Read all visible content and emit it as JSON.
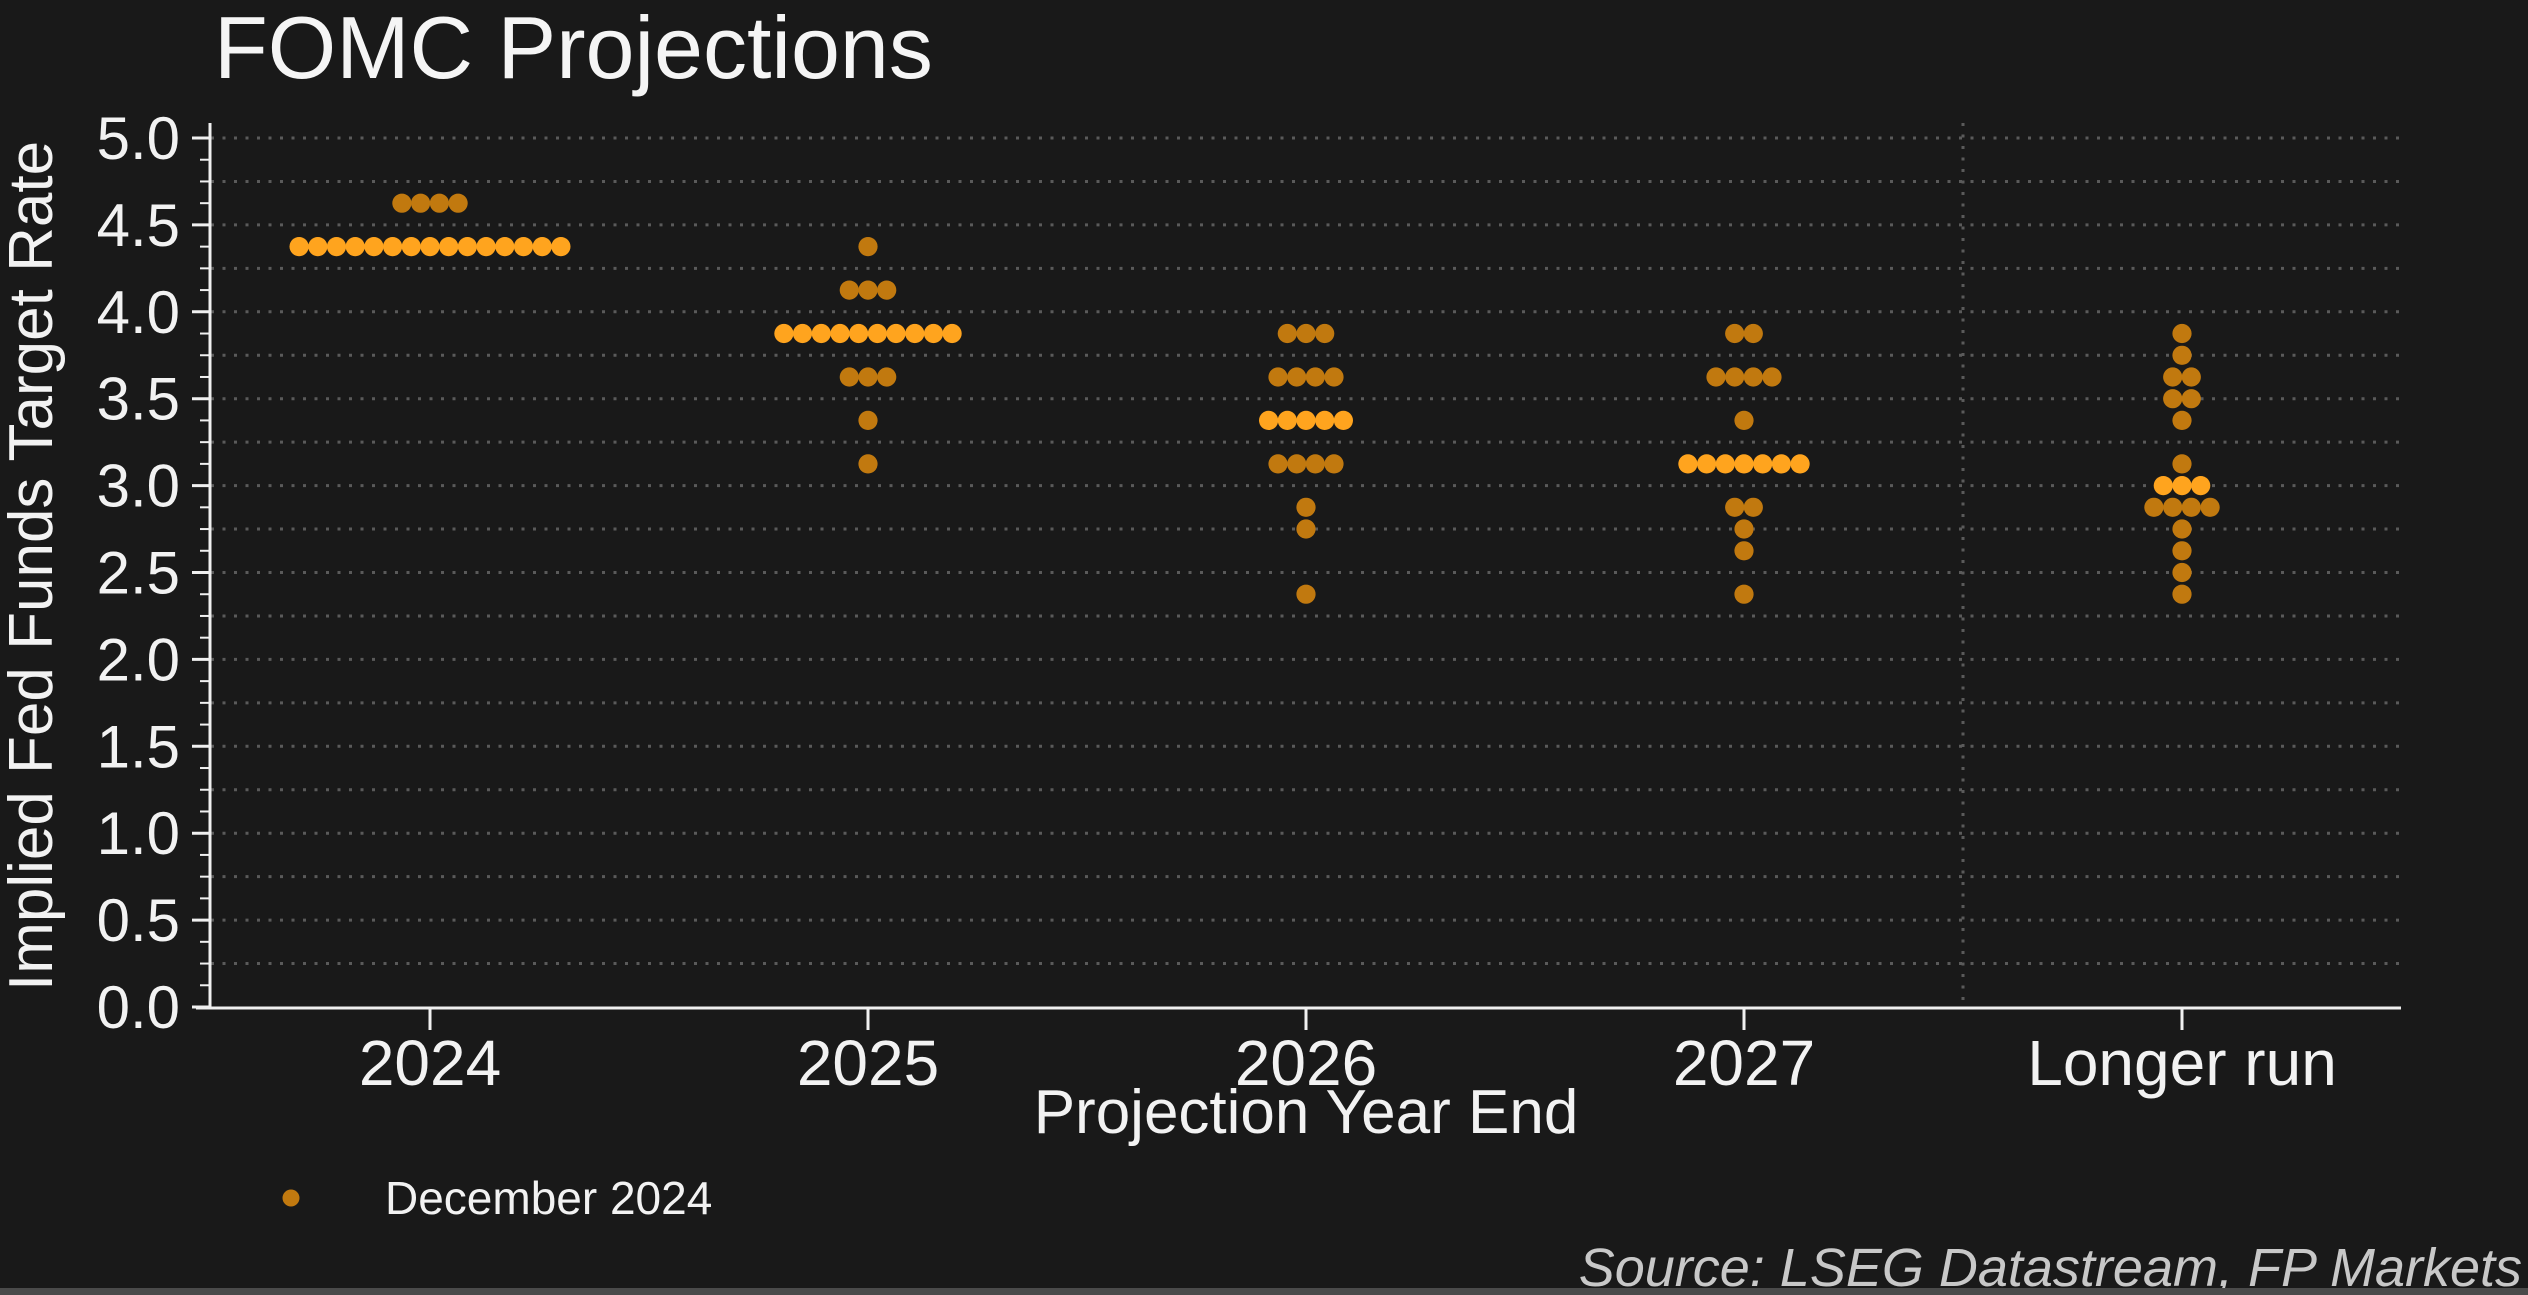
{
  "title": "FOMC Projections",
  "source_note": "Source: LSEG Datastream, FP Markets",
  "legend": {
    "series_label": "December 2024",
    "position": "bottom-left",
    "marker": "dot"
  },
  "colors": {
    "background": "#191919",
    "dot": "#c1790f",
    "dot_highlight": "#ffa41e",
    "grid": "#5a5a5a",
    "axis": "#efefef",
    "text": "#f2f2f2",
    "source_text": "#c8c8c8",
    "bottom_strip": "#4a4a4a"
  },
  "chart_data": {
    "type": "scatter",
    "subtype": "dot-plot",
    "title": "FOMC Projections",
    "xlabel": "Projection Year End",
    "ylabel": "Implied Fed Funds Target Rate",
    "categories": [
      "2024",
      "2025",
      "2026",
      "2027",
      "Longer run"
    ],
    "series_name": "December 2024",
    "y_axis": {
      "min": 0.0,
      "max": 5.0,
      "major_tick_step": 0.5,
      "minor_tick_step": 0.125,
      "grid_step": 0.25,
      "tick_labels": [
        "0.0",
        "0.5",
        "1.0",
        "1.5",
        "2.0",
        "2.5",
        "3.0",
        "3.5",
        "4.0",
        "4.5",
        "5.0"
      ]
    },
    "grid": "dotted horizontal lines every 0.25; dotted vertical separator between 2027 and Longer run",
    "legend_position": "bottom-left",
    "distributions": [
      {
        "category": "2024",
        "rows": [
          {
            "rate": 4.625,
            "count": 4
          },
          {
            "rate": 4.375,
            "count": 15,
            "median": true
          }
        ]
      },
      {
        "category": "2025",
        "rows": [
          {
            "rate": 4.375,
            "count": 1
          },
          {
            "rate": 4.125,
            "count": 3
          },
          {
            "rate": 3.875,
            "count": 10,
            "median": true
          },
          {
            "rate": 3.625,
            "count": 3
          },
          {
            "rate": 3.375,
            "count": 1
          },
          {
            "rate": 3.125,
            "count": 1
          }
        ]
      },
      {
        "category": "2026",
        "rows": [
          {
            "rate": 3.875,
            "count": 3
          },
          {
            "rate": 3.625,
            "count": 4
          },
          {
            "rate": 3.375,
            "count": 5,
            "median": true
          },
          {
            "rate": 3.125,
            "count": 4
          },
          {
            "rate": 2.875,
            "count": 1
          },
          {
            "rate": 2.75,
            "count": 1
          },
          {
            "rate": 2.375,
            "count": 1
          }
        ]
      },
      {
        "category": "2027",
        "rows": [
          {
            "rate": 3.875,
            "count": 2
          },
          {
            "rate": 3.625,
            "count": 4
          },
          {
            "rate": 3.375,
            "count": 1
          },
          {
            "rate": 3.125,
            "count": 7,
            "median": true
          },
          {
            "rate": 2.875,
            "count": 2
          },
          {
            "rate": 2.75,
            "count": 1
          },
          {
            "rate": 2.625,
            "count": 1
          },
          {
            "rate": 2.375,
            "count": 1
          }
        ]
      },
      {
        "category": "Longer run",
        "rows": [
          {
            "rate": 3.875,
            "count": 1
          },
          {
            "rate": 3.75,
            "count": 1
          },
          {
            "rate": 3.625,
            "count": 2
          },
          {
            "rate": 3.5,
            "count": 2
          },
          {
            "rate": 3.375,
            "count": 1
          },
          {
            "rate": 3.125,
            "count": 1
          },
          {
            "rate": 3.0,
            "count": 3,
            "median": true
          },
          {
            "rate": 2.875,
            "count": 4
          },
          {
            "rate": 2.75,
            "count": 1
          },
          {
            "rate": 2.625,
            "count": 1
          },
          {
            "rate": 2.5,
            "count": 1
          },
          {
            "rate": 2.375,
            "count": 1
          }
        ]
      }
    ]
  }
}
